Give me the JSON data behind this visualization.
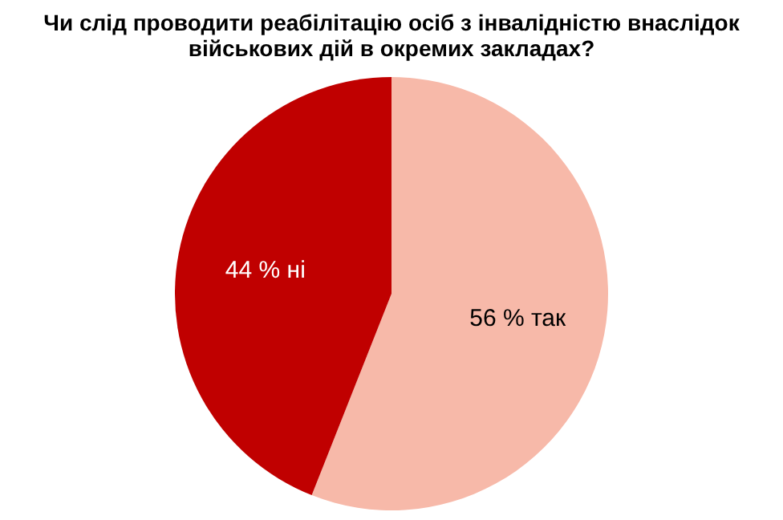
{
  "chart_data": {
    "type": "pie",
    "title": "Чи слід проводити реабілітацію осіб з інвалідністю внаслідок військових дій в окремих закладах?",
    "categories": [
      "так",
      "ні"
    ],
    "values": [
      56,
      44
    ],
    "colors": [
      "#f7b9a9",
      "#c00000"
    ],
    "value_labels": [
      "56 %",
      "44 %"
    ],
    "legend": false
  }
}
